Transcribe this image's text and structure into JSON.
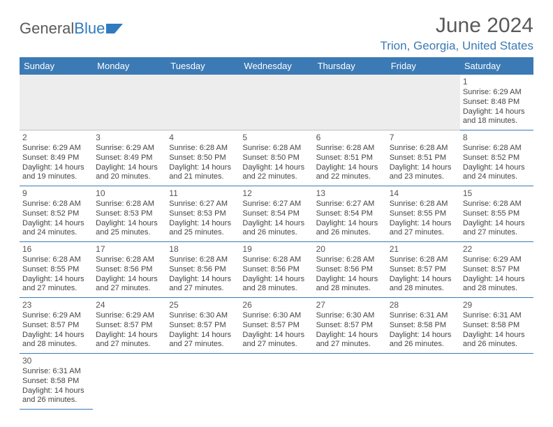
{
  "logo": {
    "text_a": "General",
    "text_b": "Blue"
  },
  "title": "June 2024",
  "location": "Trion, Georgia, United States",
  "colors": {
    "header_bg": "#3b7ab5",
    "header_fg": "#ffffff",
    "accent": "#3b7ab5",
    "logo_gray": "#5a5a5a",
    "logo_blue": "#2f7bbf",
    "blank_bg": "#ededed"
  },
  "day_headers": [
    "Sunday",
    "Monday",
    "Tuesday",
    "Wednesday",
    "Thursday",
    "Friday",
    "Saturday"
  ],
  "weeks": [
    [
      null,
      null,
      null,
      null,
      null,
      null,
      {
        "n": "1",
        "sr": "Sunrise: 6:29 AM",
        "ss": "Sunset: 8:48 PM",
        "d1": "Daylight: 14 hours",
        "d2": "and 18 minutes."
      }
    ],
    [
      {
        "n": "2",
        "sr": "Sunrise: 6:29 AM",
        "ss": "Sunset: 8:49 PM",
        "d1": "Daylight: 14 hours",
        "d2": "and 19 minutes."
      },
      {
        "n": "3",
        "sr": "Sunrise: 6:29 AM",
        "ss": "Sunset: 8:49 PM",
        "d1": "Daylight: 14 hours",
        "d2": "and 20 minutes."
      },
      {
        "n": "4",
        "sr": "Sunrise: 6:28 AM",
        "ss": "Sunset: 8:50 PM",
        "d1": "Daylight: 14 hours",
        "d2": "and 21 minutes."
      },
      {
        "n": "5",
        "sr": "Sunrise: 6:28 AM",
        "ss": "Sunset: 8:50 PM",
        "d1": "Daylight: 14 hours",
        "d2": "and 22 minutes."
      },
      {
        "n": "6",
        "sr": "Sunrise: 6:28 AM",
        "ss": "Sunset: 8:51 PM",
        "d1": "Daylight: 14 hours",
        "d2": "and 22 minutes."
      },
      {
        "n": "7",
        "sr": "Sunrise: 6:28 AM",
        "ss": "Sunset: 8:51 PM",
        "d1": "Daylight: 14 hours",
        "d2": "and 23 minutes."
      },
      {
        "n": "8",
        "sr": "Sunrise: 6:28 AM",
        "ss": "Sunset: 8:52 PM",
        "d1": "Daylight: 14 hours",
        "d2": "and 24 minutes."
      }
    ],
    [
      {
        "n": "9",
        "sr": "Sunrise: 6:28 AM",
        "ss": "Sunset: 8:52 PM",
        "d1": "Daylight: 14 hours",
        "d2": "and 24 minutes."
      },
      {
        "n": "10",
        "sr": "Sunrise: 6:28 AM",
        "ss": "Sunset: 8:53 PM",
        "d1": "Daylight: 14 hours",
        "d2": "and 25 minutes."
      },
      {
        "n": "11",
        "sr": "Sunrise: 6:27 AM",
        "ss": "Sunset: 8:53 PM",
        "d1": "Daylight: 14 hours",
        "d2": "and 25 minutes."
      },
      {
        "n": "12",
        "sr": "Sunrise: 6:27 AM",
        "ss": "Sunset: 8:54 PM",
        "d1": "Daylight: 14 hours",
        "d2": "and 26 minutes."
      },
      {
        "n": "13",
        "sr": "Sunrise: 6:27 AM",
        "ss": "Sunset: 8:54 PM",
        "d1": "Daylight: 14 hours",
        "d2": "and 26 minutes."
      },
      {
        "n": "14",
        "sr": "Sunrise: 6:28 AM",
        "ss": "Sunset: 8:55 PM",
        "d1": "Daylight: 14 hours",
        "d2": "and 27 minutes."
      },
      {
        "n": "15",
        "sr": "Sunrise: 6:28 AM",
        "ss": "Sunset: 8:55 PM",
        "d1": "Daylight: 14 hours",
        "d2": "and 27 minutes."
      }
    ],
    [
      {
        "n": "16",
        "sr": "Sunrise: 6:28 AM",
        "ss": "Sunset: 8:55 PM",
        "d1": "Daylight: 14 hours",
        "d2": "and 27 minutes."
      },
      {
        "n": "17",
        "sr": "Sunrise: 6:28 AM",
        "ss": "Sunset: 8:56 PM",
        "d1": "Daylight: 14 hours",
        "d2": "and 27 minutes."
      },
      {
        "n": "18",
        "sr": "Sunrise: 6:28 AM",
        "ss": "Sunset: 8:56 PM",
        "d1": "Daylight: 14 hours",
        "d2": "and 27 minutes."
      },
      {
        "n": "19",
        "sr": "Sunrise: 6:28 AM",
        "ss": "Sunset: 8:56 PM",
        "d1": "Daylight: 14 hours",
        "d2": "and 28 minutes."
      },
      {
        "n": "20",
        "sr": "Sunrise: 6:28 AM",
        "ss": "Sunset: 8:56 PM",
        "d1": "Daylight: 14 hours",
        "d2": "and 28 minutes."
      },
      {
        "n": "21",
        "sr": "Sunrise: 6:28 AM",
        "ss": "Sunset: 8:57 PM",
        "d1": "Daylight: 14 hours",
        "d2": "and 28 minutes."
      },
      {
        "n": "22",
        "sr": "Sunrise: 6:29 AM",
        "ss": "Sunset: 8:57 PM",
        "d1": "Daylight: 14 hours",
        "d2": "and 28 minutes."
      }
    ],
    [
      {
        "n": "23",
        "sr": "Sunrise: 6:29 AM",
        "ss": "Sunset: 8:57 PM",
        "d1": "Daylight: 14 hours",
        "d2": "and 28 minutes."
      },
      {
        "n": "24",
        "sr": "Sunrise: 6:29 AM",
        "ss": "Sunset: 8:57 PM",
        "d1": "Daylight: 14 hours",
        "d2": "and 27 minutes."
      },
      {
        "n": "25",
        "sr": "Sunrise: 6:30 AM",
        "ss": "Sunset: 8:57 PM",
        "d1": "Daylight: 14 hours",
        "d2": "and 27 minutes."
      },
      {
        "n": "26",
        "sr": "Sunrise: 6:30 AM",
        "ss": "Sunset: 8:57 PM",
        "d1": "Daylight: 14 hours",
        "d2": "and 27 minutes."
      },
      {
        "n": "27",
        "sr": "Sunrise: 6:30 AM",
        "ss": "Sunset: 8:57 PM",
        "d1": "Daylight: 14 hours",
        "d2": "and 27 minutes."
      },
      {
        "n": "28",
        "sr": "Sunrise: 6:31 AM",
        "ss": "Sunset: 8:58 PM",
        "d1": "Daylight: 14 hours",
        "d2": "and 26 minutes."
      },
      {
        "n": "29",
        "sr": "Sunrise: 6:31 AM",
        "ss": "Sunset: 8:58 PM",
        "d1": "Daylight: 14 hours",
        "d2": "and 26 minutes."
      }
    ],
    [
      {
        "n": "30",
        "sr": "Sunrise: 6:31 AM",
        "ss": "Sunset: 8:58 PM",
        "d1": "Daylight: 14 hours",
        "d2": "and 26 minutes."
      },
      null,
      null,
      null,
      null,
      null,
      null
    ]
  ]
}
